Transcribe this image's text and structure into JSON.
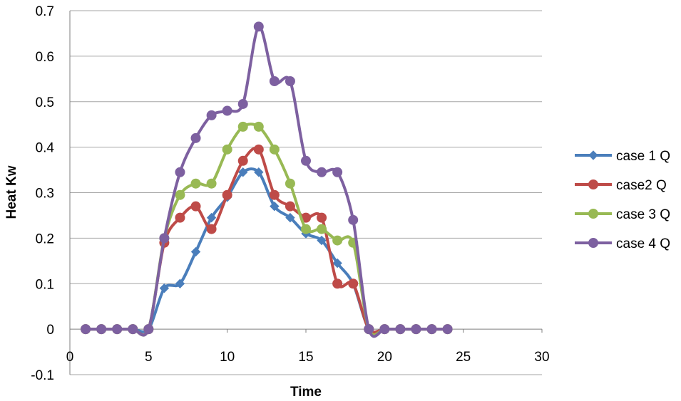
{
  "chart_data": {
    "type": "line",
    "title": "",
    "xlabel": "Time",
    "ylabel": "Heat Kw",
    "xlim": [
      0,
      30
    ],
    "ylim": [
      -0.1,
      0.7
    ],
    "xticks": [
      0,
      5,
      10,
      15,
      20,
      25,
      30
    ],
    "xtick_labels": [
      "0",
      "5",
      "10",
      "15",
      "20",
      "25",
      "30"
    ],
    "yticks": [
      -0.1,
      0,
      0.1,
      0.2,
      0.3,
      0.4,
      0.5,
      0.6,
      0.7
    ],
    "ytick_labels": [
      "-0.1",
      "0",
      "0.1",
      "0.2",
      "0.3",
      "0.4",
      "0.5",
      "0.6",
      "0.7"
    ],
    "grid": "horizontal",
    "legend_position": "right",
    "x": [
      1,
      2,
      3,
      4,
      5,
      6,
      7,
      8,
      9,
      10,
      11,
      12,
      13,
      14,
      15,
      16,
      17,
      18,
      19,
      20,
      21,
      22,
      23,
      24
    ],
    "series": [
      {
        "name": "case 1 Q",
        "color": "#4a7ebb",
        "marker": "diamond",
        "values": [
          0,
          0,
          0,
          0,
          0,
          0.09,
          0.1,
          0.17,
          0.245,
          0.29,
          0.345,
          0.345,
          0.27,
          0.245,
          0.21,
          0.195,
          0.145,
          0.1,
          0,
          0,
          0,
          0,
          0,
          0
        ]
      },
      {
        "name": "case2 Q",
        "color": "#be4b48",
        "marker": "circle",
        "values": [
          0,
          0,
          0,
          0,
          0,
          0.19,
          0.245,
          0.27,
          0.22,
          0.295,
          0.37,
          0.395,
          0.295,
          0.27,
          0.245,
          0.245,
          0.1,
          0.1,
          0,
          0,
          0,
          0,
          0,
          0
        ]
      },
      {
        "name": "case 3 Q",
        "color": "#98b954",
        "marker": "circle",
        "values": [
          0,
          0,
          0,
          0,
          0,
          0.2,
          0.295,
          0.32,
          0.32,
          0.395,
          0.445,
          0.445,
          0.395,
          0.32,
          0.22,
          0.22,
          0.195,
          0.19,
          0,
          0,
          0,
          0,
          0,
          0
        ]
      },
      {
        "name": "case 4 Q",
        "color": "#7d60a0",
        "marker": "circle",
        "values": [
          0,
          0,
          0,
          0,
          0,
          0.2,
          0.345,
          0.42,
          0.47,
          0.48,
          0.495,
          0.665,
          0.545,
          0.545,
          0.37,
          0.345,
          0.345,
          0.24,
          0,
          0,
          0,
          0,
          0,
          0
        ]
      }
    ]
  }
}
